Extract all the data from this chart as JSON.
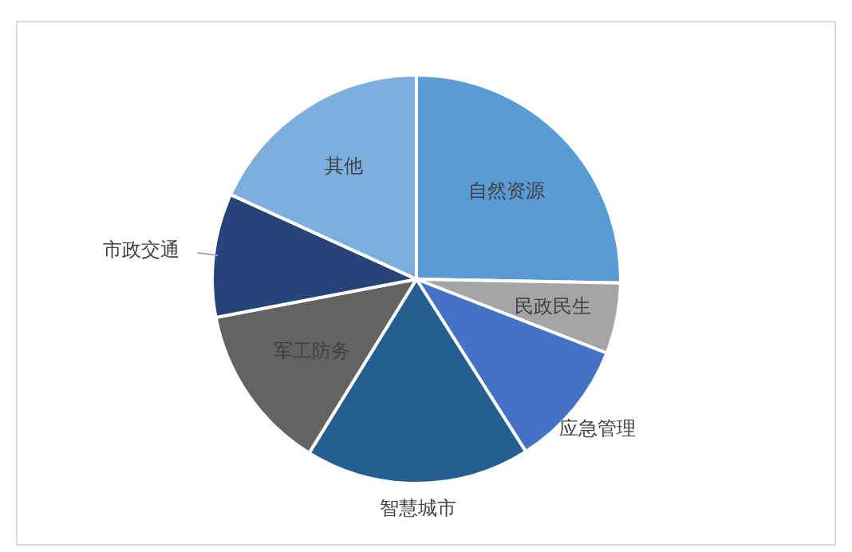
{
  "chart_data": {
    "type": "pie",
    "categories": [
      "自然资源",
      "民政民生",
      "应急管理",
      "智慧城市",
      "军工防务",
      "市政交通",
      "其他"
    ],
    "values": [
      25.3,
      5.6,
      10.1,
      17.8,
      13.2,
      9.8,
      18.2
    ],
    "colors": [
      "#5b9bd5",
      "#a5a5a5",
      "#4472c4",
      "#255e91",
      "#636363",
      "#264478",
      "#7cafdd"
    ],
    "legend": false
  }
}
